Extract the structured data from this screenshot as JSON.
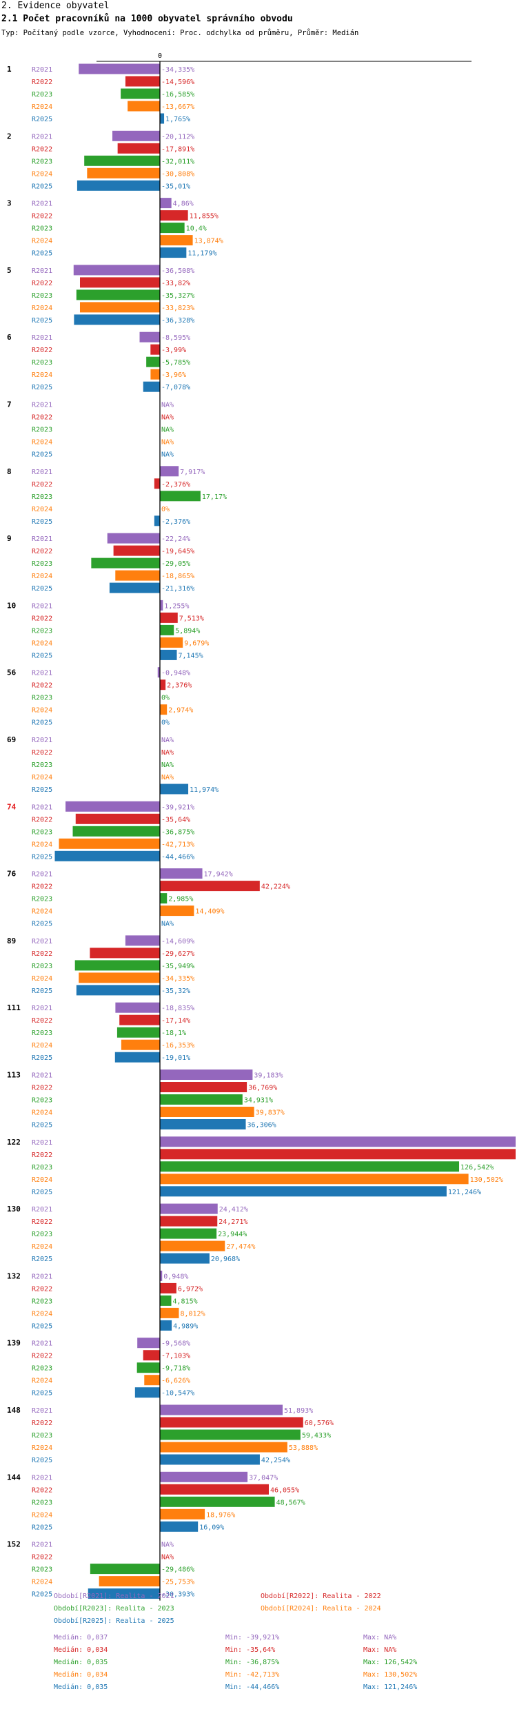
{
  "header": {
    "section": "2. Evidence obyvatel",
    "title": "2.1 Počet pracovníků na 1000 obyvatel správního obvodu",
    "subtitle": "Typ: Počítaný podle vzorce, Vyhodnocení: Proc. odchylka od průměru, Průměr: Medián"
  },
  "colors": {
    "R2021": "#9467bd",
    "R2022": "#d62728",
    "R2023": "#2ca02c",
    "R2024": "#ff7f0e",
    "R2025": "#1f77b4",
    "highlight": "#e31a1c"
  },
  "chart_data": {
    "type": "bar",
    "orientation": "horizontal",
    "axis_zero_label": "0",
    "series_names": [
      "R2021",
      "R2022",
      "R2023",
      "R2024",
      "R2025"
    ],
    "groups": [
      {
        "label": "1",
        "highlight": false,
        "values": [
          -34.335,
          -14.596,
          -16.585,
          -13.667,
          1.765
        ],
        "labels": [
          "-34,335%",
          "-14,596%",
          "-16,585%",
          "-13,667%",
          "1,765%"
        ]
      },
      {
        "label": "2",
        "highlight": false,
        "values": [
          -20.112,
          -17.891,
          -32.011,
          -30.808,
          -35.01
        ],
        "labels": [
          "-20,112%",
          "-17,891%",
          "-32,011%",
          "-30,808%",
          "-35,01%"
        ]
      },
      {
        "label": "3",
        "highlight": false,
        "values": [
          4.86,
          11.855,
          10.4,
          13.874,
          11.179
        ],
        "labels": [
          "4,86%",
          "11,855%",
          "10,4%",
          "13,874%",
          "11,179%"
        ]
      },
      {
        "label": "5",
        "highlight": false,
        "values": [
          -36.508,
          -33.82,
          -35.327,
          -33.823,
          -36.328
        ],
        "labels": [
          "-36,508%",
          "-33,82%",
          "-35,327%",
          "-33,823%",
          "-36,328%"
        ]
      },
      {
        "label": "6",
        "highlight": false,
        "values": [
          -8.595,
          -3.99,
          -5.785,
          -3.96,
          -7.078
        ],
        "labels": [
          "-8,595%",
          "-3,99%",
          "-5,785%",
          "-3,96%",
          "-7,078%"
        ]
      },
      {
        "label": "7",
        "highlight": false,
        "values": [
          null,
          null,
          null,
          null,
          null
        ],
        "labels": [
          "NA%",
          "NA%",
          "NA%",
          "NA%",
          "NA%"
        ]
      },
      {
        "label": "8",
        "highlight": false,
        "values": [
          7.917,
          -2.376,
          17.17,
          0,
          -2.376
        ],
        "labels": [
          "7,917%",
          "-2,376%",
          "17,17%",
          "0%",
          "-2,376%"
        ]
      },
      {
        "label": "9",
        "highlight": false,
        "values": [
          -22.24,
          -19.645,
          -29.05,
          -18.865,
          -21.316
        ],
        "labels": [
          "-22,24%",
          "-19,645%",
          "-29,05%",
          "-18,865%",
          "-21,316%"
        ]
      },
      {
        "label": "10",
        "highlight": false,
        "values": [
          1.255,
          7.513,
          5.894,
          9.679,
          7.145
        ],
        "labels": [
          "1,255%",
          "7,513%",
          "5,894%",
          "9,679%",
          "7,145%"
        ]
      },
      {
        "label": "56",
        "highlight": false,
        "values": [
          -0.948,
          2.376,
          0,
          2.974,
          0
        ],
        "labels": [
          "-0,948%",
          "2,376%",
          "0%",
          "2,974%",
          "0%"
        ]
      },
      {
        "label": "69",
        "highlight": false,
        "values": [
          null,
          null,
          null,
          null,
          11.974
        ],
        "labels": [
          "NA%",
          "NA%",
          "NA%",
          "NA%",
          "11,974%"
        ]
      },
      {
        "label": "74",
        "highlight": true,
        "values": [
          -39.921,
          -35.64,
          -36.875,
          -42.713,
          -44.466
        ],
        "labels": [
          "-39,921%",
          "-35,64%",
          "-36,875%",
          "-42,713%",
          "-44,466%"
        ]
      },
      {
        "label": "76",
        "highlight": false,
        "values": [
          17.942,
          42.224,
          2.985,
          14.409,
          null
        ],
        "labels": [
          "17,942%",
          "42,224%",
          "2,985%",
          "14,409%",
          "NA%"
        ]
      },
      {
        "label": "89",
        "highlight": false,
        "values": [
          -14.609,
          -29.627,
          -35.949,
          -34.335,
          -35.32
        ],
        "labels": [
          "-14,609%",
          "-29,627%",
          "-35,949%",
          "-34,335%",
          "-35,32%"
        ]
      },
      {
        "label": "111",
        "highlight": false,
        "values": [
          -18.835,
          -17.14,
          -18.1,
          -16.353,
          -19.01
        ],
        "labels": [
          "-18,835%",
          "-17,14%",
          "-18,1%",
          "-16,353%",
          "-19,01%"
        ]
      },
      {
        "label": "113",
        "highlight": false,
        "values": [
          39.183,
          36.769,
          34.931,
          39.837,
          36.306
        ],
        "labels": [
          "39,183%",
          "36,769%",
          "34,931%",
          "39,837%",
          "36,306%"
        ]
      },
      {
        "label": "122",
        "highlight": false,
        "values": [
          null,
          null,
          126.542,
          130.502,
          121.246
        ],
        "overflow": [
          true,
          true,
          false,
          false,
          false
        ],
        "labels": [
          "",
          "",
          "126,542%",
          "130,502%",
          "121,246%"
        ]
      },
      {
        "label": "130",
        "highlight": false,
        "values": [
          24.412,
          24.271,
          23.944,
          27.474,
          20.968
        ],
        "labels": [
          "24,412%",
          "24,271%",
          "23,944%",
          "27,474%",
          "20,968%"
        ]
      },
      {
        "label": "132",
        "highlight": false,
        "values": [
          0.948,
          6.972,
          4.815,
          8.012,
          4.989
        ],
        "labels": [
          "0,948%",
          "6,972%",
          "4,815%",
          "8,012%",
          "4,989%"
        ]
      },
      {
        "label": "139",
        "highlight": false,
        "values": [
          -9.568,
          -7.103,
          -9.718,
          -6.626,
          -10.547
        ],
        "labels": [
          "-9,568%",
          "-7,103%",
          "-9,718%",
          "-6,626%",
          "-10,547%"
        ]
      },
      {
        "label": "148",
        "highlight": false,
        "values": [
          51.893,
          60.576,
          59.433,
          53.888,
          42.254
        ],
        "labels": [
          "51,893%",
          "60,576%",
          "59,433%",
          "53,888%",
          "42,254%"
        ]
      },
      {
        "label": "144",
        "highlight": false,
        "values": [
          37.047,
          46.055,
          48.567,
          18.976,
          16.09
        ],
        "labels": [
          "37,047%",
          "46,055%",
          "48,567%",
          "18,976%",
          "16,09%"
        ]
      },
      {
        "label": "152",
        "highlight": false,
        "values": [
          null,
          null,
          -29.486,
          -25.753,
          -30.393
        ],
        "labels": [
          "NA%",
          "NA%",
          "-29,486%",
          "-25,753%",
          "-30,393%"
        ]
      }
    ],
    "legend": [
      {
        "series": "R2021",
        "text": "Období[R2021]: Realita - 2021"
      },
      {
        "series": "R2022",
        "text": "Období[R2022]: Realita - 2022"
      },
      {
        "series": "R2023",
        "text": "Období[R2023]: Realita - 2023"
      },
      {
        "series": "R2024",
        "text": "Období[R2024]: Realita - 2024"
      },
      {
        "series": "R2025",
        "text": "Období[R2025]: Realita - 2025"
      }
    ],
    "stats": [
      {
        "series": "R2021",
        "median": "Medián: 0,037",
        "min": "Min: -39,921%",
        "max": "Max: NA%"
      },
      {
        "series": "R2022",
        "median": "Medián: 0,034",
        "min": "Min: -35,64%",
        "max": "Max: NA%"
      },
      {
        "series": "R2023",
        "median": "Medián: 0,035",
        "min": "Min: -36,875%",
        "max": "Max: 126,542%"
      },
      {
        "series": "R2024",
        "median": "Medián: 0,034",
        "min": "Min: -42,713%",
        "max": "Max: 130,502%"
      },
      {
        "series": "R2025",
        "median": "Medián: 0,035",
        "min": "Min: -44,466%",
        "max": "Max: 121,246%"
      }
    ]
  }
}
